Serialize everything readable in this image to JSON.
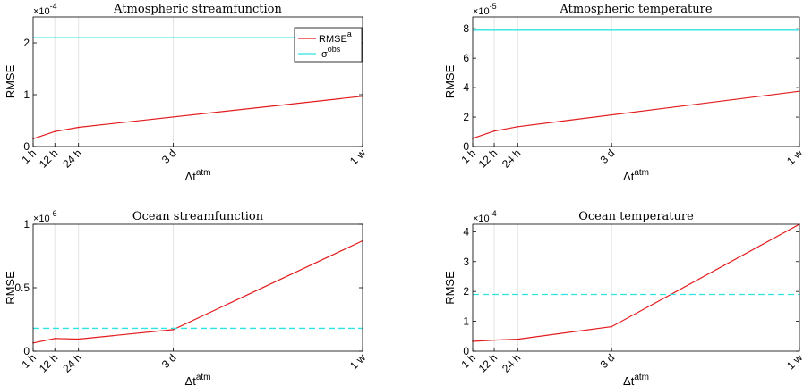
{
  "xlabel": "Δt",
  "xlabel_sup": "atm",
  "ylabel": "RMSE",
  "legend": {
    "rmse_label": "RMSE",
    "rmse_sup": "a",
    "obs_label": "σ",
    "obs_sup": "obs"
  },
  "colors": {
    "rmse": "#e31a1c",
    "obs": "#2fe3e3",
    "grid": "#e3e3e3",
    "axis": "#000000"
  },
  "x_ticks": [
    {
      "label": "1 h",
      "hours": 1
    },
    {
      "label": "12 h",
      "hours": 12
    },
    {
      "label": "24 h",
      "hours": 24
    },
    {
      "label": "3 d",
      "hours": 72
    },
    {
      "label": "1 w",
      "hours": 168
    }
  ],
  "chart_data": [
    {
      "type": "line",
      "title": "Atmospheric streamfunction",
      "exponent_base": "×10",
      "exponent": "-4",
      "ylim": [
        0,
        2.5
      ],
      "yticks": [
        0,
        1,
        2
      ],
      "x": [
        1,
        12,
        24,
        168
      ],
      "series": [
        {
          "name": "RMSEᵃ",
          "values": [
            0.15,
            0.29,
            0.37,
            0.97
          ]
        },
        {
          "name": "σᵒᵇˢ",
          "constant": 2.1,
          "dash": false
        }
      ],
      "legend_location": "top-right",
      "grid": "x"
    },
    {
      "type": "line",
      "title": "Atmospheric temperature",
      "exponent_base": "×10",
      "exponent": "-5",
      "ylim": [
        0,
        8.8
      ],
      "yticks": [
        0,
        2,
        4,
        6,
        8
      ],
      "x": [
        1,
        12,
        24,
        168
      ],
      "series": [
        {
          "name": "RMSEᵃ",
          "values": [
            0.55,
            1.05,
            1.35,
            3.75
          ]
        },
        {
          "name": "σᵒᵇˢ",
          "constant": 7.9,
          "dash": false
        }
      ],
      "grid": "x"
    },
    {
      "type": "line",
      "title": "Ocean streamfunction",
      "exponent_base": "×10",
      "exponent": "-6",
      "ylim": [
        0,
        1
      ],
      "yticks": [
        0,
        0.5,
        1
      ],
      "ytick_labels": [
        "0",
        "0.5",
        "1"
      ],
      "x": [
        1,
        12,
        24,
        72,
        168
      ],
      "series": [
        {
          "name": "RMSEᵃ",
          "values": [
            0.065,
            0.1,
            0.095,
            0.17,
            0.87
          ]
        },
        {
          "name": "σᵒᵇˢ",
          "constant": 0.18,
          "dash": true
        }
      ],
      "grid": "x"
    },
    {
      "type": "line",
      "title": "Ocean temperature",
      "exponent_base": "×10",
      "exponent": "-4",
      "ylim": [
        0,
        4.25
      ],
      "yticks": [
        0,
        1,
        2,
        3,
        4
      ],
      "x": [
        1,
        12,
        24,
        72,
        168
      ],
      "series": [
        {
          "name": "RMSEᵃ",
          "values": [
            0.33,
            0.37,
            0.4,
            0.82,
            4.25
          ]
        },
        {
          "name": "σᵒᵇˢ",
          "constant": 1.9,
          "dash": true
        }
      ],
      "grid": "x"
    }
  ]
}
